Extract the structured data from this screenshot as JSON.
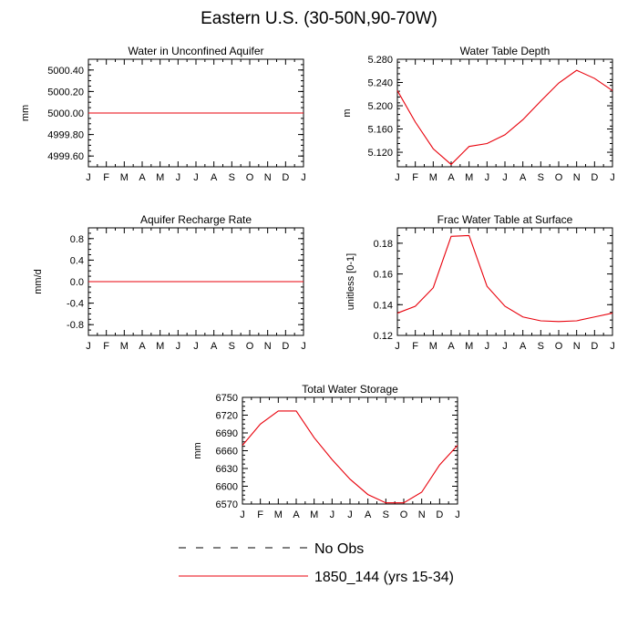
{
  "page": {
    "title": "Eastern U.S. (30-50N,90-70W)"
  },
  "colors": {
    "model": "#e8000b",
    "obs": "#000000",
    "axis": "#000000"
  },
  "months": [
    "J",
    "F",
    "M",
    "A",
    "M",
    "J",
    "J",
    "A",
    "S",
    "O",
    "N",
    "D",
    "J"
  ],
  "legend": [
    {
      "label": "No Obs",
      "style": "dashed",
      "color": "#000000"
    },
    {
      "label": "1850_144 (yrs 15-34)",
      "style": "solid",
      "color": "#e8000b"
    }
  ],
  "chart_data": [
    {
      "type": "line",
      "title": "Water in Unconfined Aquifer",
      "ylabel": "mm",
      "ylim": [
        4999.5,
        5000.5
      ],
      "yticks": [
        4999.6,
        4999.8,
        5000.0,
        5000.2,
        5000.4
      ],
      "ytick_labels": [
        "4999.60",
        "4999.80",
        "5000.00",
        "5000.20",
        "5000.40"
      ],
      "series": [
        {
          "values": [
            5000.0,
            5000.0,
            5000.0,
            5000.0,
            5000.0,
            5000.0,
            5000.0,
            5000.0,
            5000.0,
            5000.0,
            5000.0,
            5000.0,
            5000.0
          ]
        }
      ]
    },
    {
      "type": "line",
      "title": "Water Table Depth",
      "ylabel": "m",
      "ylim": [
        5.095,
        5.28
      ],
      "yticks": [
        5.12,
        5.16,
        5.2,
        5.24,
        5.28
      ],
      "ytick_labels": [
        "5.120",
        "5.160",
        "5.200",
        "5.240",
        "5.280"
      ],
      "series": [
        {
          "values": [
            5.226,
            5.172,
            5.126,
            5.099,
            5.13,
            5.135,
            5.15,
            5.176,
            5.208,
            5.239,
            5.261,
            5.247,
            5.226
          ]
        }
      ]
    },
    {
      "type": "line",
      "title": "Aquifer Recharge Rate",
      "ylabel": "mm/d",
      "ylim": [
        -1.0,
        1.0
      ],
      "yticks": [
        -0.8,
        -0.4,
        0.0,
        0.4,
        0.8
      ],
      "ytick_labels": [
        "-0.8",
        "-0.4",
        "0.0",
        "0.4",
        "0.8"
      ],
      "series": [
        {
          "values": [
            0,
            0,
            0,
            0,
            0,
            0,
            0,
            0,
            0,
            0,
            0,
            0,
            0
          ]
        }
      ]
    },
    {
      "type": "line",
      "title": "Frac Water Table at Surface",
      "ylabel": "unitless [0-1]",
      "ylim": [
        0.12,
        0.19
      ],
      "yticks": [
        0.12,
        0.14,
        0.16,
        0.18
      ],
      "ytick_labels": [
        "0.12",
        "0.14",
        "0.16",
        "0.18"
      ],
      "series": [
        {
          "values": [
            0.1345,
            0.139,
            0.151,
            0.1845,
            0.185,
            0.152,
            0.139,
            0.132,
            0.1295,
            0.129,
            0.1295,
            0.132,
            0.1345
          ]
        }
      ]
    },
    {
      "type": "line",
      "title": "Total Water Storage",
      "ylabel": "mm",
      "ylim": [
        6570,
        6750
      ],
      "yticks": [
        6570,
        6600,
        6630,
        6660,
        6690,
        6720,
        6750
      ],
      "ytick_labels": [
        "6570",
        "6600",
        "6630",
        "6660",
        "6690",
        "6720",
        "6750"
      ],
      "series": [
        {
          "values": [
            6669,
            6705,
            6727,
            6727,
            6682,
            6645,
            6612,
            6586,
            6572,
            6572,
            6590,
            6636,
            6669
          ]
        }
      ]
    }
  ]
}
